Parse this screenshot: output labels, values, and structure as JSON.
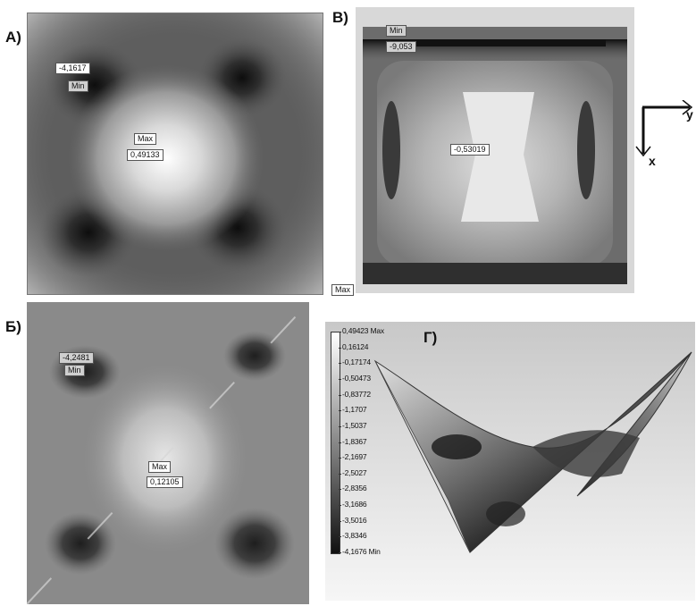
{
  "panels": {
    "a": {
      "label": "А)",
      "tags": [
        {
          "text": "-4,1617",
          "kind": "value"
        },
        {
          "text": "Min",
          "kind": "name"
        },
        {
          "text": "Max",
          "kind": "name"
        },
        {
          "text": "0,49133",
          "kind": "value"
        }
      ]
    },
    "v": {
      "label": "В)",
      "tags": [
        {
          "text": "Min",
          "kind": "name"
        },
        {
          "text": "-9,053",
          "kind": "value"
        },
        {
          "text": "-0,53019",
          "kind": "value"
        },
        {
          "text": "Max",
          "kind": "name"
        }
      ]
    },
    "b": {
      "label": "Б)",
      "tags": [
        {
          "text": "-4,2481",
          "kind": "value"
        },
        {
          "text": "Min",
          "kind": "name"
        },
        {
          "text": "Max",
          "kind": "name"
        },
        {
          "text": "0,12105",
          "kind": "value"
        }
      ]
    },
    "g": {
      "label": "Г)",
      "legend": [
        "0,49423 Max",
        "0,16124",
        "-0,17174",
        "-0,50473",
        "-0,83772",
        "-1,1707",
        "-1,5037",
        "-1,8367",
        "-2,1697",
        "-2,5027",
        "-2,8356",
        "-3,1686",
        "-3,5016",
        "-3,8346",
        "-4,1676 Min"
      ]
    }
  },
  "axes": {
    "y_label": "y",
    "x_label": "x"
  },
  "colors": {
    "dark": "#1a1a1a",
    "light": "#f2f2f2",
    "mid": "#6e6e6e"
  }
}
